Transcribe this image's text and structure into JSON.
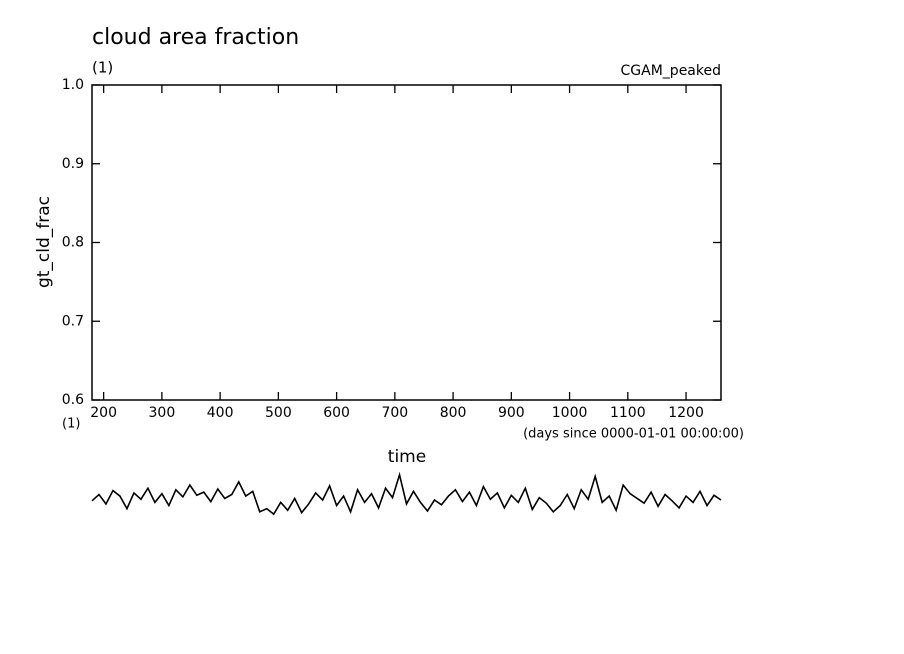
{
  "chart_data": {
    "type": "line",
    "title": "cloud area fraction",
    "subtitle": "(1)",
    "annotation": "CGAM_peaked",
    "ylabel": "gt_cld_frac",
    "yunits": "(1)",
    "xlabel": "time",
    "xunits": "(days since 0000-01-01 00:00:00)",
    "xlim": [
      180,
      1260
    ],
    "xticks": [
      200,
      300,
      400,
      500,
      600,
      700,
      800,
      900,
      1000,
      1100,
      1200
    ],
    "ylim": [
      0.6,
      1.0
    ],
    "yticks": [
      0.6,
      0.7,
      0.8,
      0.9,
      {
        "value": 1,
        "label": "1.0"
      }
    ],
    "x": [
      180,
      192,
      204,
      216,
      228,
      240,
      252,
      264,
      276,
      288,
      300,
      312,
      324,
      336,
      348,
      360,
      372,
      384,
      396,
      408,
      420,
      432,
      444,
      456,
      468,
      480,
      492,
      504,
      516,
      528,
      540,
      552,
      564,
      576,
      588,
      600,
      612,
      624,
      636,
      648,
      660,
      672,
      684,
      696,
      708,
      720,
      732,
      744,
      756,
      768,
      780,
      792,
      804,
      816,
      828,
      840,
      852,
      864,
      876,
      888,
      900,
      912,
      924,
      936,
      948,
      960,
      972,
      984,
      996,
      1008,
      1020,
      1032,
      1044,
      1056,
      1068,
      1080,
      1092,
      1104,
      1116,
      1128,
      1140,
      1152,
      1164,
      1176,
      1188,
      1200,
      1212,
      1224,
      1236,
      1248,
      1260
    ],
    "series": [
      {
        "name": "gt_cld_frac",
        "color": "#000000",
        "values": [
          0.472,
          0.48,
          0.468,
          0.485,
          0.478,
          0.462,
          0.482,
          0.474,
          0.488,
          0.47,
          0.481,
          0.466,
          0.486,
          0.477,
          0.492,
          0.479,
          0.483,
          0.471,
          0.487,
          0.475,
          0.48,
          0.496,
          0.478,
          0.484,
          0.458,
          0.462,
          0.455,
          0.47,
          0.46,
          0.475,
          0.457,
          0.468,
          0.482,
          0.473,
          0.491,
          0.466,
          0.478,
          0.458,
          0.486,
          0.47,
          0.481,
          0.463,
          0.488,
          0.476,
          0.505,
          0.468,
          0.484,
          0.47,
          0.459,
          0.473,
          0.467,
          0.478,
          0.486,
          0.471,
          0.483,
          0.466,
          0.49,
          0.474,
          0.482,
          0.463,
          0.479,
          0.47,
          0.488,
          0.461,
          0.476,
          0.469,
          0.458,
          0.466,
          0.48,
          0.462,
          0.486,
          0.474,
          0.503,
          0.47,
          0.478,
          0.46,
          0.492,
          0.481,
          0.475,
          0.469,
          0.483,
          0.465,
          0.48,
          0.472,
          0.463,
          0.478,
          0.47,
          0.484,
          0.466,
          0.479,
          0.473
        ]
      }
    ]
  }
}
